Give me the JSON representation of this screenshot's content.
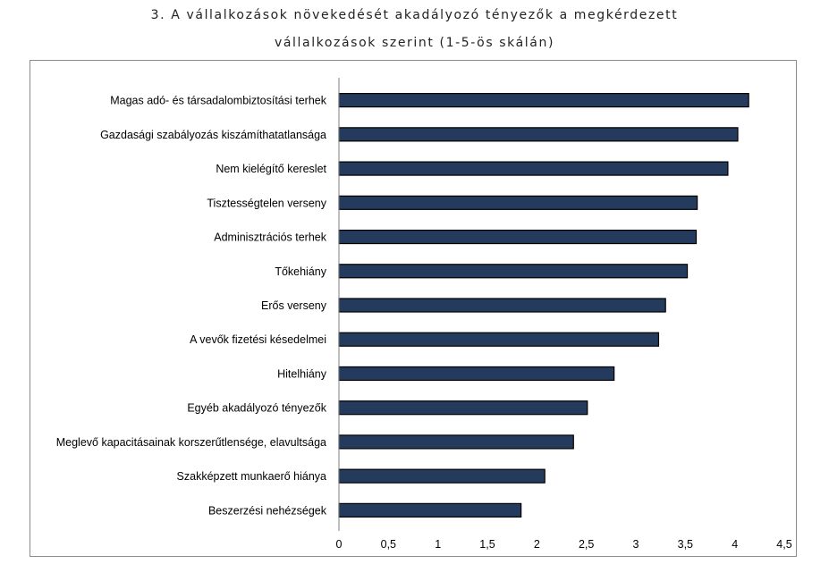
{
  "title_line1": "3. A vállalkozások növekedését akadályozó tényezők a megkérdezett",
  "title_line2": "vállalkozások szerint (1-5-ös skálán)",
  "chart_data": {
    "type": "bar",
    "orientation": "horizontal",
    "title": "3. A vállalkozások növekedését akadályozó tényezők a megkérdezett vállalkozások szerint (1-5-ös skálán)",
    "categories": [
      "Magas adó- és társadalombiztosítási terhek",
      "Gazdasági szabályozás kiszámíthatatlansága",
      "Nem kielégítő kereslet",
      "Tisztességtelen verseny",
      "Adminisztrációs terhek",
      "Tőkehiány",
      "Erős verseny",
      "A vevők fizetési késedelmei",
      "Hitelhiány",
      "Egyéb akadályozó tényezők",
      "Meglevő kapacitásainak korszerűtlensége, elavultsága",
      "Szakképzett munkaerő hiánya",
      "Beszerzési nehézségek"
    ],
    "values": [
      4.14,
      4.03,
      3.93,
      3.62,
      3.61,
      3.52,
      3.3,
      3.23,
      2.78,
      2.51,
      2.37,
      2.08,
      1.84
    ],
    "xlim": [
      0,
      4.5
    ],
    "xticks": [
      "0",
      "0,5",
      "1",
      "1,5",
      "2",
      "2,5",
      "3",
      "3,5",
      "4",
      "4,5"
    ],
    "xlabel": "",
    "ylabel": "",
    "grid": false,
    "legend": "none",
    "bar_color": "#253b5e",
    "bar_edge_color": "#000000"
  }
}
